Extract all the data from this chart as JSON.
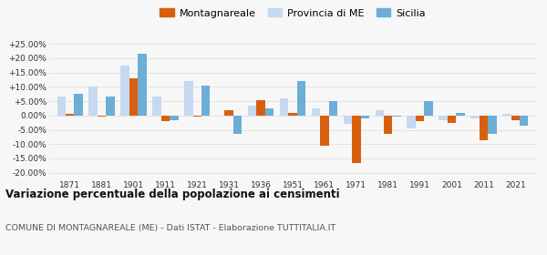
{
  "years": [
    1871,
    1881,
    1901,
    1911,
    1921,
    1931,
    1936,
    1951,
    1961,
    1971,
    1981,
    1991,
    2001,
    2011,
    2021
  ],
  "montagnareale": [
    0.5,
    -0.5,
    13.0,
    -2.0,
    -0.5,
    2.0,
    5.5,
    1.0,
    -10.5,
    -16.5,
    -6.5,
    -2.0,
    -2.5,
    -8.5,
    -1.5
  ],
  "provincia_me": [
    6.5,
    10.0,
    17.5,
    6.5,
    12.0,
    0.0,
    3.5,
    6.0,
    2.5,
    -3.0,
    2.0,
    -4.5,
    -1.5,
    -1.0,
    0.5
  ],
  "sicilia": [
    7.5,
    6.5,
    21.5,
    -1.5,
    10.5,
    -6.5,
    2.5,
    12.0,
    5.0,
    -1.0,
    -0.5,
    5.0,
    1.0,
    -6.5,
    -3.5
  ],
  "color_montagnareale": "#d95f0e",
  "color_provincia": "#c6d9f0",
  "color_sicilia": "#6baed6",
  "background_color": "#f7f7f7",
  "title": "Variazione percentuale della popolazione ai censimenti",
  "subtitle": "COMUNE DI MONTAGNAREALE (ME) - Dati ISTAT - Elaborazione TUTTITALIA.IT",
  "ylim": [
    -22,
    27
  ],
  "yticks": [
    -20,
    -15,
    -10,
    -5,
    0,
    5,
    10,
    15,
    20,
    25
  ],
  "ytick_labels": [
    "-20.00%",
    "-15.00%",
    "-10.00%",
    "-5.00%",
    "0.00%",
    "+5.00%",
    "+10.00%",
    "+15.00%",
    "+20.00%",
    "+25.00%"
  ],
  "legend_labels": [
    "Montagnareale",
    "Provincia di ME",
    "Sicilia"
  ],
  "bar_width": 0.27,
  "grid_color": "#e0e0e0"
}
